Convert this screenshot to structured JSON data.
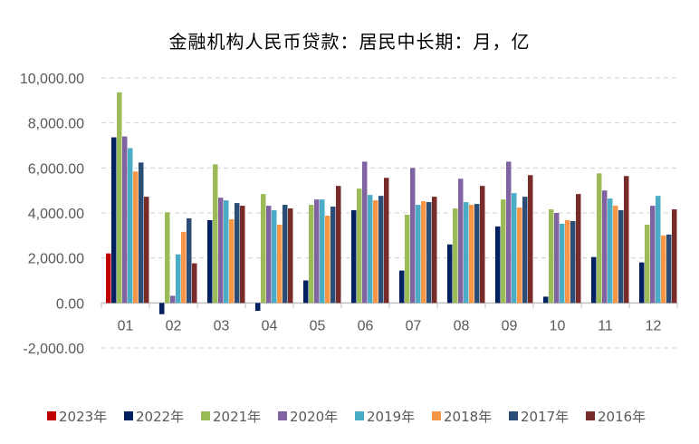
{
  "chart_data": {
    "type": "bar",
    "title": "金融机构人民币贷款：居民中长期：月，亿",
    "categories": [
      "01",
      "02",
      "03",
      "04",
      "05",
      "06",
      "07",
      "08",
      "09",
      "10",
      "11",
      "12"
    ],
    "ylim": [
      -2000,
      10000
    ],
    "yticks": [
      "-2,000.00",
      "0.00",
      "2,000.00",
      "4,000.00",
      "6,000.00",
      "8,000.00",
      "10,000.00"
    ],
    "ytick_values": [
      -2000,
      0,
      2000,
      4000,
      6000,
      8000,
      10000
    ],
    "grid": true,
    "legend": "bottom",
    "series": [
      {
        "name": "2023年",
        "color": "#C00000",
        "values": [
          2200,
          null,
          null,
          null,
          null,
          null,
          null,
          null,
          null,
          null,
          null,
          null
        ]
      },
      {
        "name": "2022年",
        "color": "#002060",
        "values": [
          7360,
          -500,
          3680,
          -350,
          1000,
          4120,
          1440,
          2600,
          3400,
          280,
          2040,
          1800
        ]
      },
      {
        "name": "2021年",
        "color": "#9BBB59",
        "values": [
          9360,
          4030,
          6160,
          4840,
          4360,
          5080,
          3920,
          4200,
          4600,
          4160,
          5760,
          3480
        ]
      },
      {
        "name": "2020年",
        "color": "#8064A2",
        "values": [
          7400,
          320,
          4680,
          4320,
          4600,
          6280,
          6000,
          5520,
          6280,
          4000,
          5000,
          4320
        ]
      },
      {
        "name": "2019年",
        "color": "#4BACC6",
        "values": [
          6880,
          2160,
          4560,
          4120,
          4600,
          4800,
          4360,
          4480,
          4880,
          3520,
          4640,
          4760
        ]
      },
      {
        "name": "2018年",
        "color": "#F79646",
        "values": [
          5840,
          3160,
          3720,
          3480,
          3880,
          4560,
          4520,
          4360,
          4240,
          3680,
          4320,
          3000
        ]
      },
      {
        "name": "2017年",
        "color": "#2C4D75",
        "values": [
          6240,
          3760,
          4440,
          4360,
          4280,
          4760,
          4480,
          4400,
          4720,
          3640,
          4120,
          3040
        ]
      },
      {
        "name": "2016年",
        "color": "#772C2A",
        "values": [
          4720,
          1760,
          4320,
          4200,
          5200,
          5560,
          4720,
          5200,
          5680,
          4840,
          5640,
          4160
        ]
      }
    ]
  }
}
